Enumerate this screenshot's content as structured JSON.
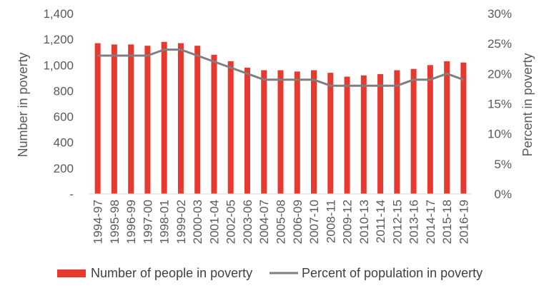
{
  "chart_data": {
    "type": "bar",
    "categories": [
      "1994-97",
      "1995-98",
      "1996-99",
      "1997-00",
      "1998-01",
      "1999-02",
      "2000-03",
      "2001-04",
      "2002-05",
      "2003-06",
      "2004-07",
      "2005-08",
      "2006-09",
      "2007-10",
      "2008-11",
      "2009-12",
      "2010-13",
      "2011-14",
      "2012-15",
      "2013-16",
      "2014-17",
      "2015-18",
      "2016-19"
    ],
    "series": [
      {
        "name": "Number of people in poverty",
        "type": "bar",
        "axis": "left",
        "values": [
          1170,
          1160,
          1160,
          1150,
          1180,
          1170,
          1150,
          1080,
          1030,
          980,
          960,
          960,
          950,
          960,
          940,
          910,
          920,
          930,
          960,
          970,
          1000,
          1030,
          1020
        ]
      },
      {
        "name": "Percent of population in poverty",
        "type": "line",
        "axis": "right",
        "values": [
          0.23,
          0.23,
          0.23,
          0.23,
          0.24,
          0.24,
          0.23,
          0.22,
          0.21,
          0.2,
          0.19,
          0.19,
          0.19,
          0.19,
          0.18,
          0.18,
          0.18,
          0.18,
          0.18,
          0.19,
          0.19,
          0.2,
          0.19
        ]
      }
    ],
    "ylabel": "Number in poverty",
    "y2label": "Percent in poverty",
    "ylim": [
      0,
      1400
    ],
    "y2lim": [
      0,
      0.3
    ],
    "yticks": [
      "-",
      "200",
      "400",
      "600",
      "800",
      "1,000",
      "1,200",
      "1,400"
    ],
    "y2ticks": [
      "0%",
      "5%",
      "10%",
      "15%",
      "20%",
      "25%",
      "30%"
    ],
    "grid": false,
    "legend_position": "bottom",
    "colors": {
      "bar": "#E8392F",
      "line": "#7F7F7F",
      "axis": "#D9D9D9",
      "text": "#595959"
    }
  }
}
